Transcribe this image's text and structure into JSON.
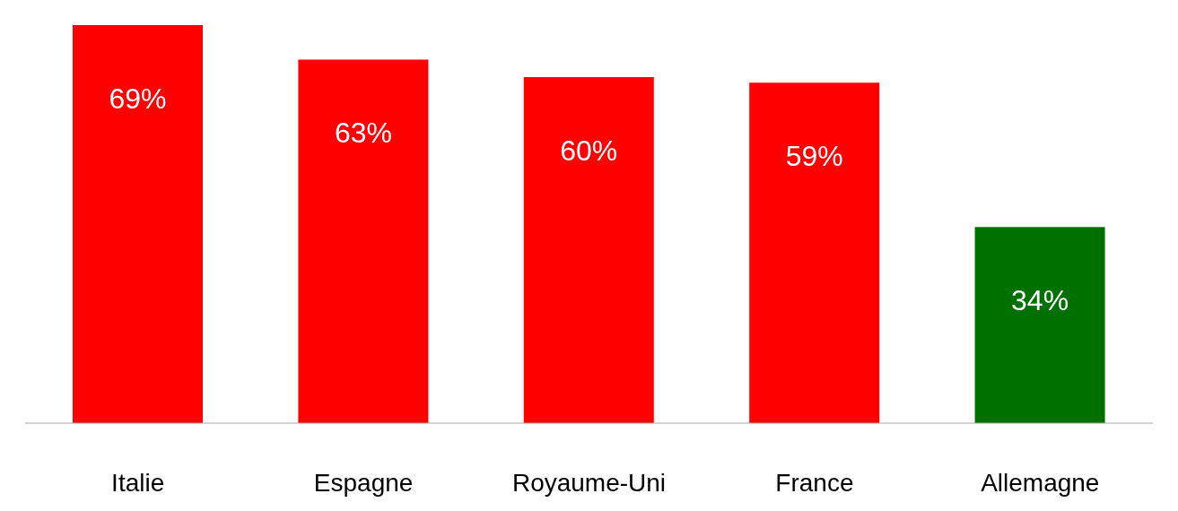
{
  "chart_data": {
    "type": "bar",
    "categories": [
      "Italie",
      "Espagne",
      "Royaume-Uni",
      "France",
      "Allemagne"
    ],
    "values": [
      69,
      63,
      60,
      59,
      34
    ],
    "value_labels": [
      "69%",
      "63%",
      "60%",
      "59%",
      "34%"
    ],
    "colors": [
      "#ff0000",
      "#ff0000",
      "#ff0000",
      "#ff0000",
      "#007000"
    ]
  }
}
